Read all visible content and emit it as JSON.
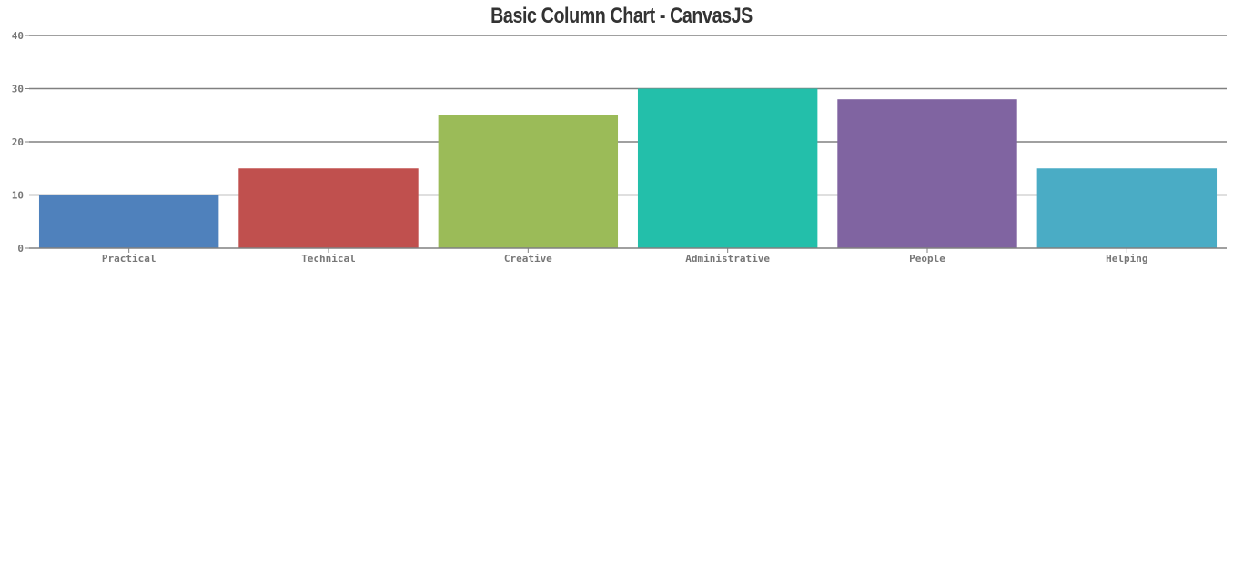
{
  "chart_data": {
    "type": "bar",
    "title": "Basic Column Chart - CanvasJS",
    "categories": [
      "Practical",
      "Technical",
      "Creative",
      "Administrative",
      "People",
      "Helping"
    ],
    "values": [
      10,
      15,
      25,
      30,
      28,
      15
    ],
    "colors": [
      "#4f81bc",
      "#c0504e",
      "#9bbb58",
      "#23bfaa",
      "#8064a1",
      "#4aacc5"
    ],
    "ylim": [
      0,
      40
    ],
    "yticks": [
      0,
      10,
      20,
      30,
      40
    ],
    "grid": true,
    "legend": "none"
  }
}
